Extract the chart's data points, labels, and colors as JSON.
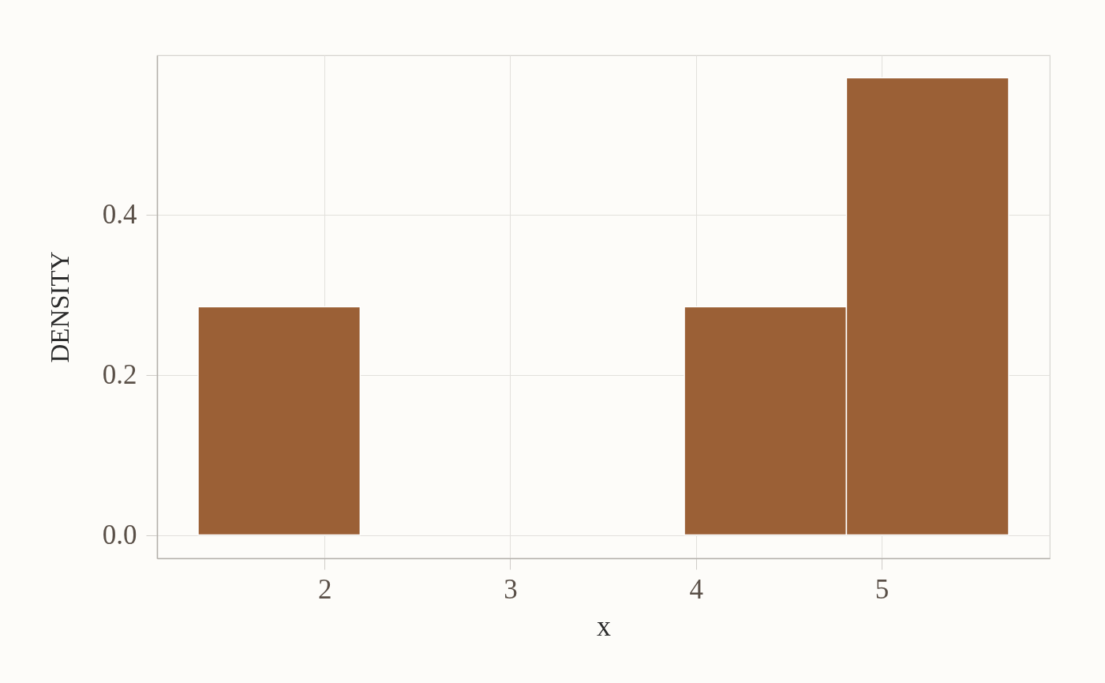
{
  "chart_data": {
    "type": "histogram",
    "xlabel": "x",
    "ylabel": "DENSITY",
    "bins": [
      1.319,
      2.192,
      3.065,
      3.938,
      4.811,
      5.685
    ],
    "values": [
      0.285,
      0,
      0,
      0.285,
      0.571
    ],
    "color": "#9b6036",
    "xlim": [
      1.098,
      5.906
    ],
    "ylim": [
      -0.029,
      0.599
    ],
    "xticks": [
      2,
      3,
      4,
      5
    ],
    "yticks": [
      {
        "value": 0,
        "label": "0.0"
      },
      0.2,
      0.4
    ],
    "grid": true
  }
}
